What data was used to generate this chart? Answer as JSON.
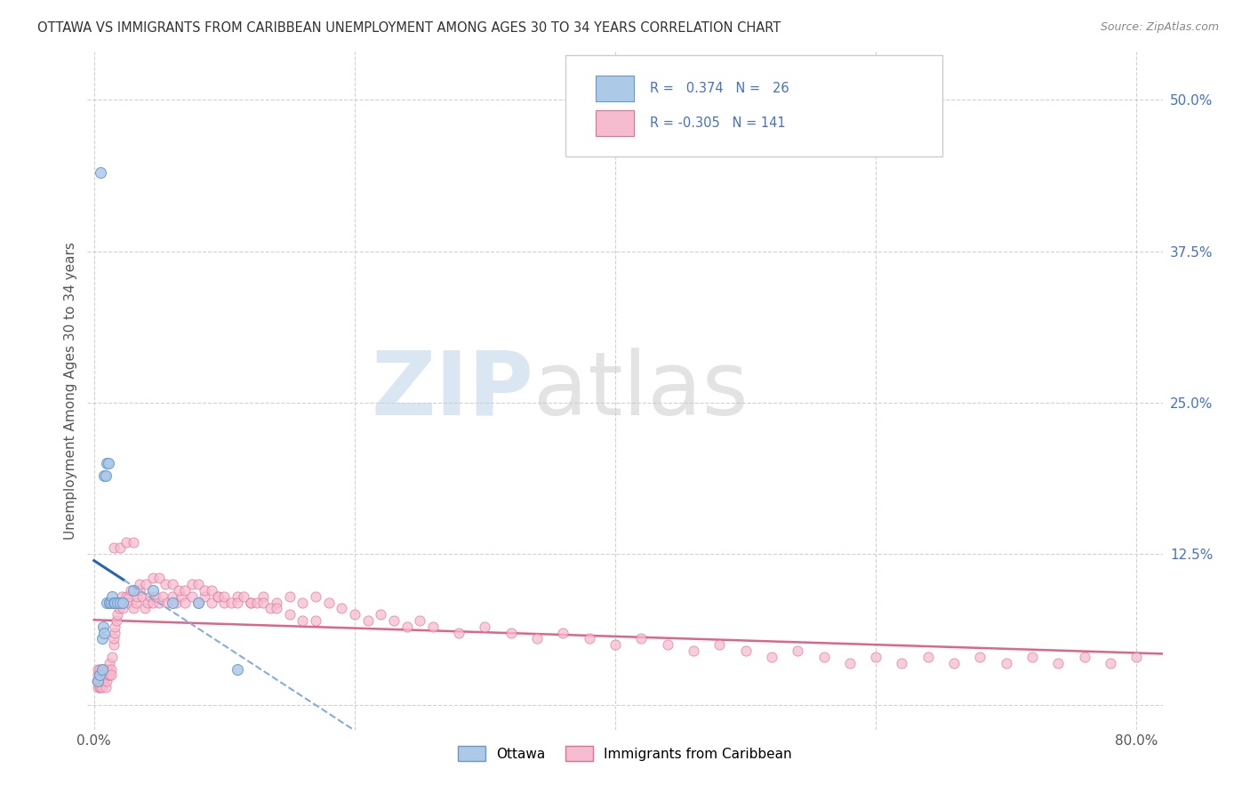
{
  "title": "OTTAWA VS IMMIGRANTS FROM CARIBBEAN UNEMPLOYMENT AMONG AGES 30 TO 34 YEARS CORRELATION CHART",
  "source": "Source: ZipAtlas.com",
  "ylabel": "Unemployment Among Ages 30 to 34 years",
  "xlim": [
    -0.005,
    0.82
  ],
  "ylim": [
    -0.02,
    0.54
  ],
  "xtick_positions": [
    0.0,
    0.2,
    0.4,
    0.6,
    0.8
  ],
  "xticklabels": [
    "0.0%",
    "",
    "",
    "",
    "80.0%"
  ],
  "ytick_positions": [
    0.0,
    0.125,
    0.25,
    0.375,
    0.5
  ],
  "yticklabels_right": [
    "",
    "12.5%",
    "25.0%",
    "37.5%",
    "50.0%"
  ],
  "ottawa_R": 0.374,
  "ottawa_N": 26,
  "carib_R": -0.305,
  "carib_N": 141,
  "ottawa_color": "#adc9e8",
  "ottawa_edge": "#6699cc",
  "carib_color": "#f5bcd0",
  "carib_edge": "#e07090",
  "ottawa_line_solid_color": "#2266bb",
  "ottawa_line_dash_color": "#88aadd",
  "carib_line_color": "#dd6688",
  "watermark_zip_color": "#c5d8ea",
  "watermark_atlas_color": "#c5c5c5",
  "background": "#ffffff",
  "grid_color": "#cccccc",
  "title_color": "#333333",
  "source_color": "#888888",
  "right_tick_color": "#4472c4",
  "legend_R_color": "#4472c4",
  "legend_label_1": "Ottawa",
  "legend_label_2": "Immigrants from Caribbean",
  "ottawa_x": [
    0.003,
    0.004,
    0.005,
    0.006,
    0.006,
    0.007,
    0.008,
    0.008,
    0.009,
    0.01,
    0.01,
    0.011,
    0.012,
    0.012,
    0.013,
    0.014,
    0.015,
    0.016,
    0.018,
    0.02,
    0.022,
    0.03,
    0.045,
    0.06,
    0.08,
    0.11
  ],
  "ottawa_y": [
    0.02,
    0.025,
    0.44,
    0.03,
    0.055,
    0.065,
    0.06,
    0.19,
    0.19,
    0.085,
    0.2,
    0.2,
    0.085,
    0.085,
    0.085,
    0.09,
    0.085,
    0.085,
    0.085,
    0.085,
    0.085,
    0.095,
    0.095,
    0.085,
    0.085,
    0.03
  ],
  "carib_x": [
    0.002,
    0.003,
    0.003,
    0.003,
    0.004,
    0.004,
    0.004,
    0.005,
    0.005,
    0.005,
    0.006,
    0.006,
    0.006,
    0.007,
    0.007,
    0.007,
    0.008,
    0.008,
    0.008,
    0.009,
    0.009,
    0.01,
    0.01,
    0.01,
    0.011,
    0.011,
    0.012,
    0.012,
    0.013,
    0.013,
    0.014,
    0.015,
    0.015,
    0.016,
    0.016,
    0.017,
    0.018,
    0.019,
    0.02,
    0.021,
    0.022,
    0.023,
    0.025,
    0.026,
    0.027,
    0.028,
    0.03,
    0.032,
    0.033,
    0.035,
    0.037,
    0.039,
    0.041,
    0.043,
    0.045,
    0.047,
    0.05,
    0.053,
    0.056,
    0.06,
    0.063,
    0.067,
    0.07,
    0.075,
    0.08,
    0.085,
    0.09,
    0.095,
    0.1,
    0.11,
    0.12,
    0.13,
    0.14,
    0.15,
    0.16,
    0.17,
    0.18,
    0.19,
    0.2,
    0.21,
    0.22,
    0.23,
    0.24,
    0.25,
    0.26,
    0.28,
    0.3,
    0.32,
    0.34,
    0.36,
    0.38,
    0.4,
    0.42,
    0.44,
    0.46,
    0.48,
    0.5,
    0.52,
    0.54,
    0.56,
    0.58,
    0.6,
    0.62,
    0.64,
    0.66,
    0.68,
    0.7,
    0.72,
    0.74,
    0.76,
    0.78,
    0.8,
    0.015,
    0.02,
    0.025,
    0.03,
    0.035,
    0.04,
    0.045,
    0.05,
    0.055,
    0.06,
    0.065,
    0.07,
    0.075,
    0.08,
    0.085,
    0.09,
    0.095,
    0.1,
    0.105,
    0.11,
    0.115,
    0.12,
    0.125,
    0.13,
    0.135,
    0.14,
    0.15,
    0.16,
    0.17
  ],
  "carib_y": [
    0.02,
    0.015,
    0.025,
    0.03,
    0.02,
    0.03,
    0.015,
    0.02,
    0.025,
    0.015,
    0.03,
    0.025,
    0.015,
    0.025,
    0.03,
    0.02,
    0.025,
    0.03,
    0.02,
    0.025,
    0.015,
    0.025,
    0.03,
    0.02,
    0.025,
    0.03,
    0.025,
    0.035,
    0.03,
    0.025,
    0.04,
    0.05,
    0.055,
    0.06,
    0.065,
    0.07,
    0.075,
    0.08,
    0.085,
    0.09,
    0.08,
    0.085,
    0.09,
    0.085,
    0.09,
    0.095,
    0.08,
    0.085,
    0.09,
    0.095,
    0.09,
    0.08,
    0.085,
    0.09,
    0.085,
    0.09,
    0.085,
    0.09,
    0.085,
    0.09,
    0.085,
    0.09,
    0.085,
    0.09,
    0.085,
    0.09,
    0.085,
    0.09,
    0.085,
    0.09,
    0.085,
    0.09,
    0.085,
    0.09,
    0.085,
    0.09,
    0.085,
    0.08,
    0.075,
    0.07,
    0.075,
    0.07,
    0.065,
    0.07,
    0.065,
    0.06,
    0.065,
    0.06,
    0.055,
    0.06,
    0.055,
    0.05,
    0.055,
    0.05,
    0.045,
    0.05,
    0.045,
    0.04,
    0.045,
    0.04,
    0.035,
    0.04,
    0.035,
    0.04,
    0.035,
    0.04,
    0.035,
    0.04,
    0.035,
    0.04,
    0.035,
    0.04,
    0.13,
    0.13,
    0.135,
    0.135,
    0.1,
    0.1,
    0.105,
    0.105,
    0.1,
    0.1,
    0.095,
    0.095,
    0.1,
    0.1,
    0.095,
    0.095,
    0.09,
    0.09,
    0.085,
    0.085,
    0.09,
    0.085,
    0.085,
    0.085,
    0.08,
    0.08,
    0.075,
    0.07,
    0.07
  ]
}
